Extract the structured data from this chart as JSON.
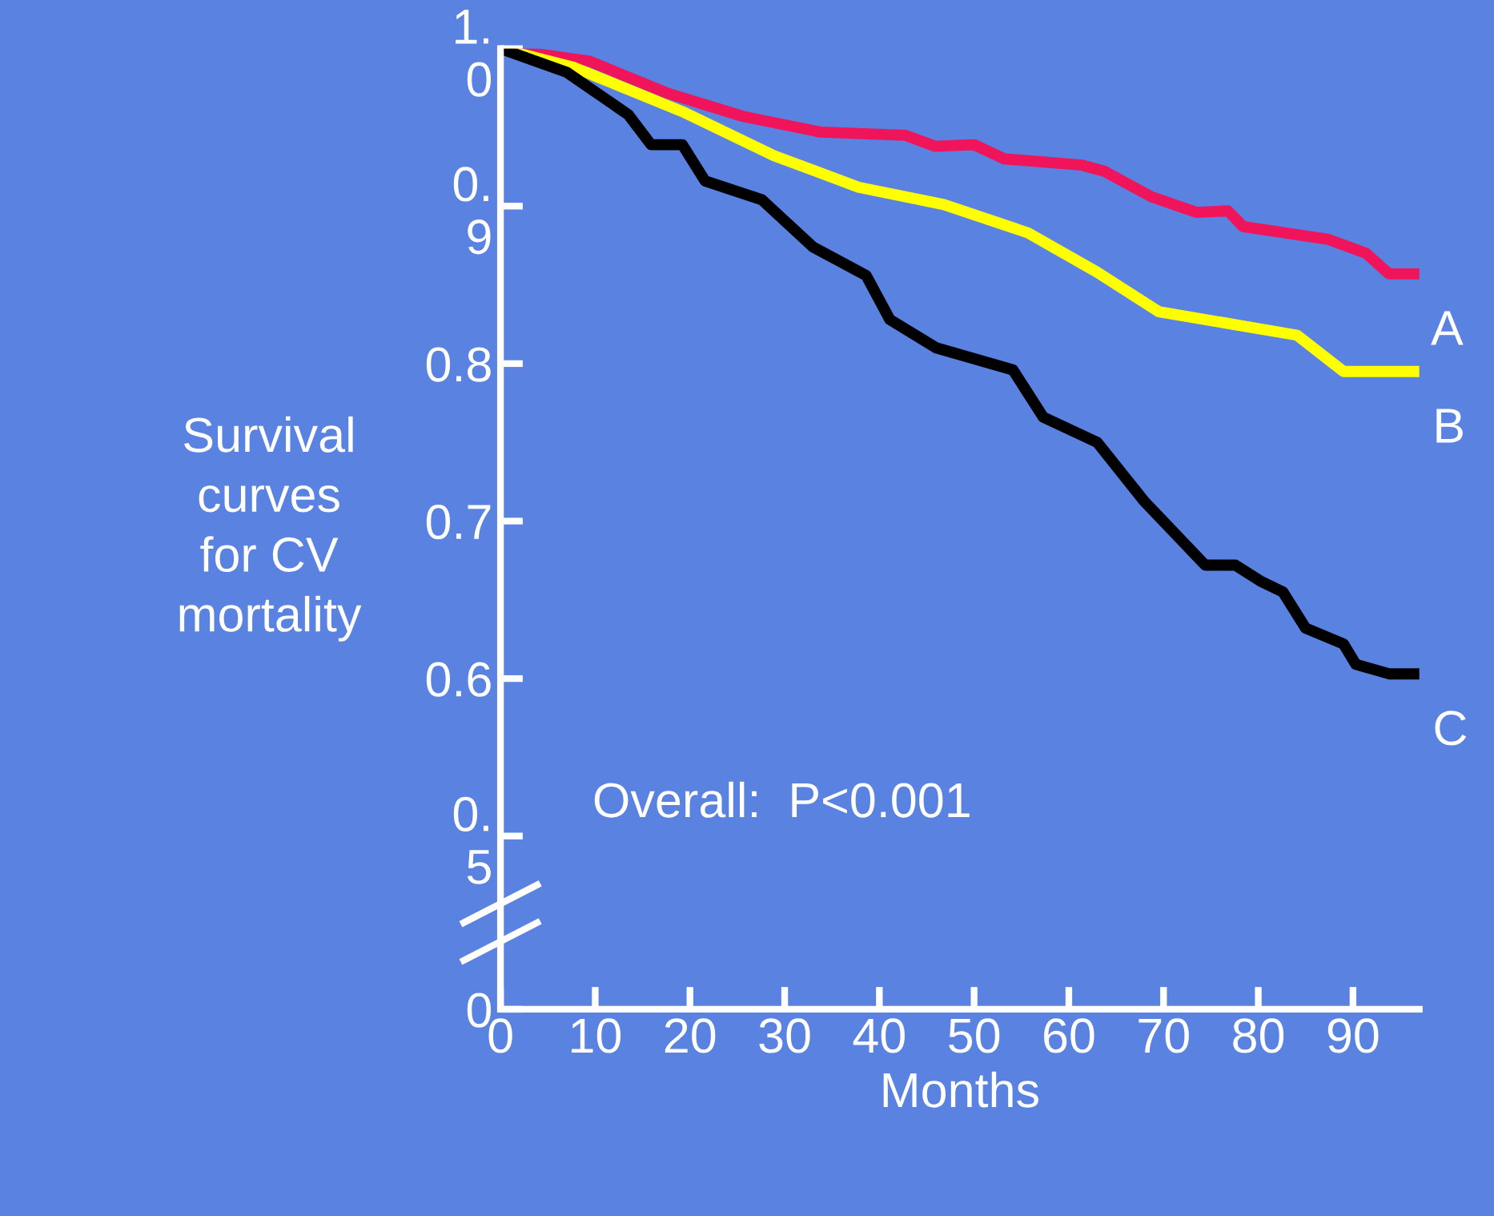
{
  "chart_data": {
    "type": "line",
    "ylabel": "Survival\ncurves\nfor CV\nmortality",
    "xlabel": "Months",
    "annotations": [
      "Overall:  P<0.001"
    ],
    "xlim": [
      0,
      97
    ],
    "xticks": [
      0,
      10,
      20,
      30,
      40,
      50,
      60,
      70,
      80,
      90
    ],
    "ylim": [
      0.39,
      1.0
    ],
    "yticks": [
      {
        "value": 0.39,
        "label": "0"
      },
      {
        "value": 0.5,
        "label": "0.\n5"
      },
      0.6,
      0.7,
      0.8,
      {
        "value": 0.9,
        "label": "0.\n9"
      },
      {
        "value": 1.0,
        "label": "1.\n0"
      }
    ],
    "grid": false,
    "legend": false,
    "marker": "none",
    "line_style": "solid",
    "series": [
      {
        "name": "A",
        "color": "#f0145a",
        "x": [
          0,
          9.4,
          17.5,
          25.6,
          33.8,
          42.7,
          45.9,
          50,
          53.2,
          61.4,
          63.8,
          68.7,
          73.5,
          76.8,
          78.4,
          87.3,
          91.4,
          93.8,
          96.8
        ],
        "values": [
          1.0,
          0.992,
          0.972,
          0.957,
          0.947,
          0.945,
          0.938,
          0.939,
          0.93,
          0.926,
          0.922,
          0.906,
          0.896,
          0.897,
          0.887,
          0.879,
          0.87,
          0.857,
          0.857
        ]
      },
      {
        "name": "B",
        "color": "#ffff00",
        "x": [
          0,
          7.8,
          19.2,
          28.9,
          37.8,
          46.8,
          55.7,
          63,
          69.5,
          84.1,
          89,
          97
        ],
        "values": [
          1.0,
          0.988,
          0.96,
          0.932,
          0.912,
          0.901,
          0.883,
          0.858,
          0.833,
          0.818,
          0.795,
          0.795
        ]
      },
      {
        "name": "C",
        "color": "#000000",
        "x": [
          0,
          7,
          13.5,
          15.9,
          19.2,
          21.6,
          27.6,
          33,
          38.6,
          41.1,
          46,
          54.1,
          57.3,
          63,
          67.9,
          74.4,
          77.6,
          80.2,
          82.6,
          85,
          89,
          90.3,
          93.8,
          97
        ],
        "values": [
          1.0,
          0.985,
          0.958,
          0.939,
          0.939,
          0.916,
          0.904,
          0.874,
          0.856,
          0.828,
          0.81,
          0.796,
          0.766,
          0.75,
          0.713,
          0.672,
          0.672,
          0.662,
          0.655,
          0.632,
          0.622,
          0.609,
          0.603,
          0.603
        ]
      }
    ]
  }
}
